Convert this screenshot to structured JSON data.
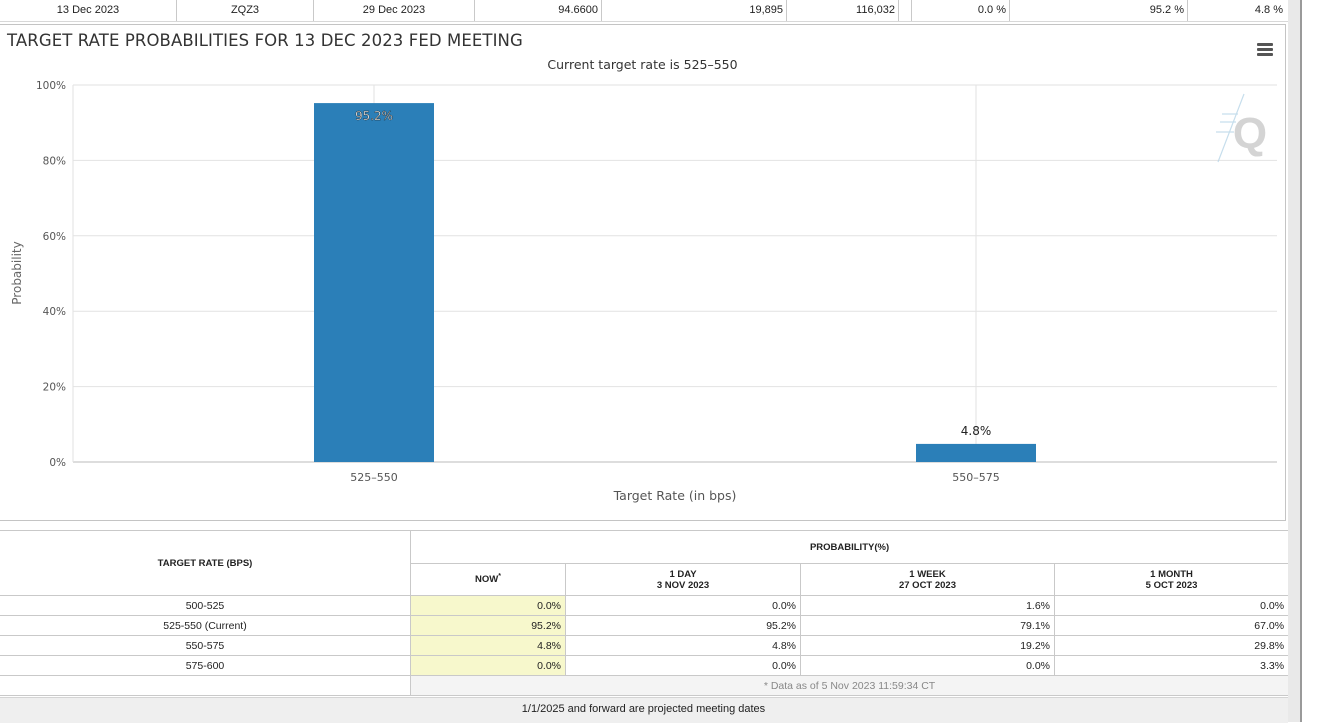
{
  "top_row": {
    "meeting_date": "13 Dec 2023",
    "contract": "ZQZ3",
    "expires": "29 Dec 2023",
    "mid_price": "94.6600",
    "prior_volume": "19,895",
    "prior_oi": "116,032",
    "ease": "0.0 %",
    "no_change": "95.2 %",
    "hike": "4.8 %"
  },
  "chart": {
    "title": "TARGET RATE PROBABILITIES FOR 13 DEC 2023 FED MEETING",
    "subtitle": "Current target rate is 525–550",
    "menu_icon": "hamburger-menu-icon",
    "watermark_icon": "q-logo-watermark"
  },
  "chart_data": {
    "type": "bar",
    "title": "TARGET RATE PROBABILITIES FOR 13 DEC 2023 FED MEETING",
    "subtitle": "Current target rate is 525–550",
    "categories": [
      "525–550",
      "550–575"
    ],
    "values": [
      95.2,
      4.8
    ],
    "data_labels": [
      "95.2%",
      "4.8%"
    ],
    "xlabel": "Target Rate (in bps)",
    "ylabel": "Probability",
    "ylim": [
      0,
      100
    ],
    "y_ticks": [
      "0%",
      "20%",
      "40%",
      "60%",
      "80%",
      "100%"
    ],
    "y_tick_values": [
      0,
      20,
      40,
      60,
      80,
      100
    ],
    "grid": true,
    "bar_color": "#2b7fb8"
  },
  "table": {
    "target_rate_header": "TARGET RATE (BPS)",
    "probability_header": "PROBABILITY(%)",
    "columns": [
      {
        "line1": "NOW",
        "marker": "*",
        "line2": ""
      },
      {
        "line1": "1 DAY",
        "line2": "3 NOV 2023"
      },
      {
        "line1": "1 WEEK",
        "line2": "27 OCT 2023"
      },
      {
        "line1": "1 MONTH",
        "line2": "5 OCT 2023"
      }
    ],
    "rows": [
      {
        "rate": "500-525",
        "now": "0.0%",
        "day": "0.0%",
        "week": "1.6%",
        "month": "0.0%"
      },
      {
        "rate": "525-550 (Current)",
        "now": "95.2%",
        "day": "95.2%",
        "week": "79.1%",
        "month": "67.0%"
      },
      {
        "rate": "550-575",
        "now": "4.8%",
        "day": "4.8%",
        "week": "19.2%",
        "month": "29.8%"
      },
      {
        "rate": "575-600",
        "now": "0.0%",
        "day": "0.0%",
        "week": "0.0%",
        "month": "3.3%"
      }
    ],
    "note": "* Data as of 5 Nov 2023 11:59:34 CT",
    "footer": "1/1/2025 and forward are projected meeting dates"
  },
  "colors": {
    "now_column_bg": "#f7f8cc",
    "bar": "#2b7fb8"
  }
}
